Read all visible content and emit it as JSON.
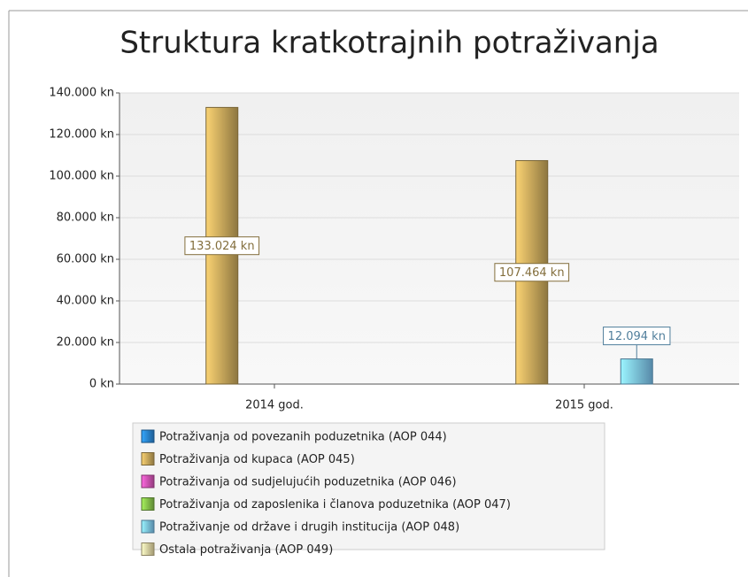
{
  "chart_data": {
    "type": "bar",
    "title": "Struktura kratkotrajnih potraživanja",
    "categories": [
      "2014 god.",
      "2015 god."
    ],
    "series": [
      {
        "name": "Potraživanja od povezanih poduzetnika (AOP 044)",
        "color": "#2a86d6",
        "values": [
          null,
          null
        ]
      },
      {
        "name": "Potraživanja od kupaca (AOP 045)",
        "color": "#c9a95c",
        "values": [
          133024,
          107464
        ],
        "value_labels": [
          "133.024 kn",
          "107.464 kn"
        ]
      },
      {
        "name": "Potraživanja od sudjelujućih poduzetnika (AOP 046)",
        "color": "#d454b4",
        "values": [
          null,
          null
        ]
      },
      {
        "name": "Potraživanja od zaposlenika i članova poduzetnika (AOP 047)",
        "color": "#86c24a",
        "values": [
          null,
          null
        ]
      },
      {
        "name": "Potraživanje od države i drugih institucija (AOP 048)",
        "color": "#7cc4f0",
        "values": [
          null,
          12094
        ],
        "value_labels": [
          null,
          "12.094 kn"
        ]
      },
      {
        "name": "Ostala potraživanja (AOP 049)",
        "color": "#e8d9a2",
        "values": [
          null,
          null
        ]
      }
    ],
    "ylim": [
      0,
      140000
    ],
    "yticks": [
      {
        "value": 0,
        "label": "0 kn"
      },
      {
        "value": 20000,
        "label": "20.000 kn"
      },
      {
        "value": 40000,
        "label": "40.000 kn"
      },
      {
        "value": 60000,
        "label": "60.000 kn"
      },
      {
        "value": 80000,
        "label": "80.000 kn"
      },
      {
        "value": 100000,
        "label": "100.000 kn"
      },
      {
        "value": 120000,
        "label": "120.000 kn"
      },
      {
        "value": 140000,
        "label": "140.000 kn"
      }
    ],
    "grid": true
  }
}
